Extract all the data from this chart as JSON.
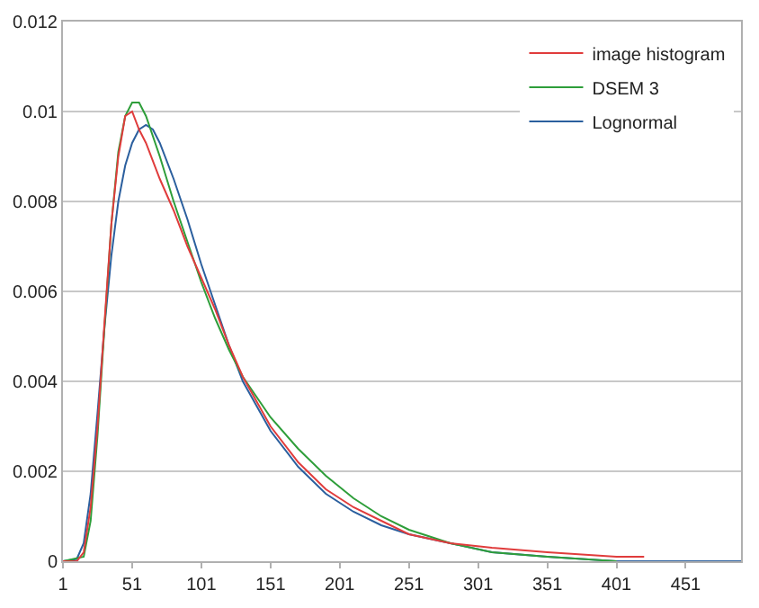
{
  "chart_data": {
    "type": "line",
    "xlim": [
      1,
      491
    ],
    "xticks": [
      1,
      51,
      101,
      151,
      201,
      251,
      301,
      351,
      401,
      451
    ],
    "ylim": [
      0,
      0.012
    ],
    "yticks": [
      0,
      0.002,
      0.004,
      0.006,
      0.008,
      0.01,
      0.012
    ],
    "grid": "y",
    "legend": "top right",
    "marker": "none",
    "line_style": "solid",
    "series": [
      {
        "name": "image histogram",
        "color": "#e03c3c",
        "x": [
          1,
          11,
          16,
          21,
          26,
          31,
          36,
          41,
          46,
          51,
          56,
          61,
          71,
          81,
          91,
          101,
          111,
          121,
          131,
          151,
          171,
          191,
          211,
          231,
          251,
          281,
          311,
          351,
          401,
          421
        ],
        "values": [
          0,
          0,
          0.0002,
          0.0012,
          0.003,
          0.0053,
          0.0075,
          0.009,
          0.0099,
          0.01,
          0.0096,
          0.0093,
          0.0085,
          0.0078,
          0.007,
          0.0063,
          0.0056,
          0.0048,
          0.0041,
          0.003,
          0.0022,
          0.0016,
          0.0012,
          0.0009,
          0.0006,
          0.0004,
          0.0003,
          0.0002,
          0.0001,
          0.0001
        ]
      },
      {
        "name": "DSEM 3",
        "color": "#2e9e3a",
        "x": [
          1,
          16,
          21,
          26,
          31,
          36,
          41,
          46,
          51,
          56,
          61,
          71,
          81,
          91,
          101,
          111,
          121,
          131,
          151,
          171,
          191,
          211,
          231,
          251,
          281,
          311,
          351,
          401
        ],
        "values": [
          0,
          0.0001,
          0.0009,
          0.0028,
          0.0052,
          0.0075,
          0.0091,
          0.0099,
          0.0102,
          0.0102,
          0.0099,
          0.009,
          0.008,
          0.0071,
          0.0062,
          0.0054,
          0.0047,
          0.0041,
          0.0032,
          0.0025,
          0.0019,
          0.0014,
          0.001,
          0.0007,
          0.0004,
          0.0002,
          0.0001,
          0
        ]
      },
      {
        "name": "Lognormal",
        "color": "#2b5f9e",
        "x": [
          1,
          11,
          16,
          21,
          26,
          31,
          36,
          41,
          46,
          51,
          56,
          61,
          66,
          71,
          81,
          91,
          101,
          111,
          121,
          131,
          151,
          171,
          191,
          211,
          231,
          251,
          281,
          311,
          351,
          401,
          451,
          491
        ],
        "values": [
          0,
          5e-05,
          0.0004,
          0.0015,
          0.0033,
          0.0052,
          0.0068,
          0.008,
          0.0088,
          0.0093,
          0.0096,
          0.0097,
          0.0096,
          0.0093,
          0.0085,
          0.0076,
          0.0066,
          0.0057,
          0.0048,
          0.004,
          0.0029,
          0.0021,
          0.0015,
          0.0011,
          0.0008,
          0.0006,
          0.0004,
          0.0002,
          0.0001,
          0,
          0,
          0
        ]
      }
    ]
  }
}
